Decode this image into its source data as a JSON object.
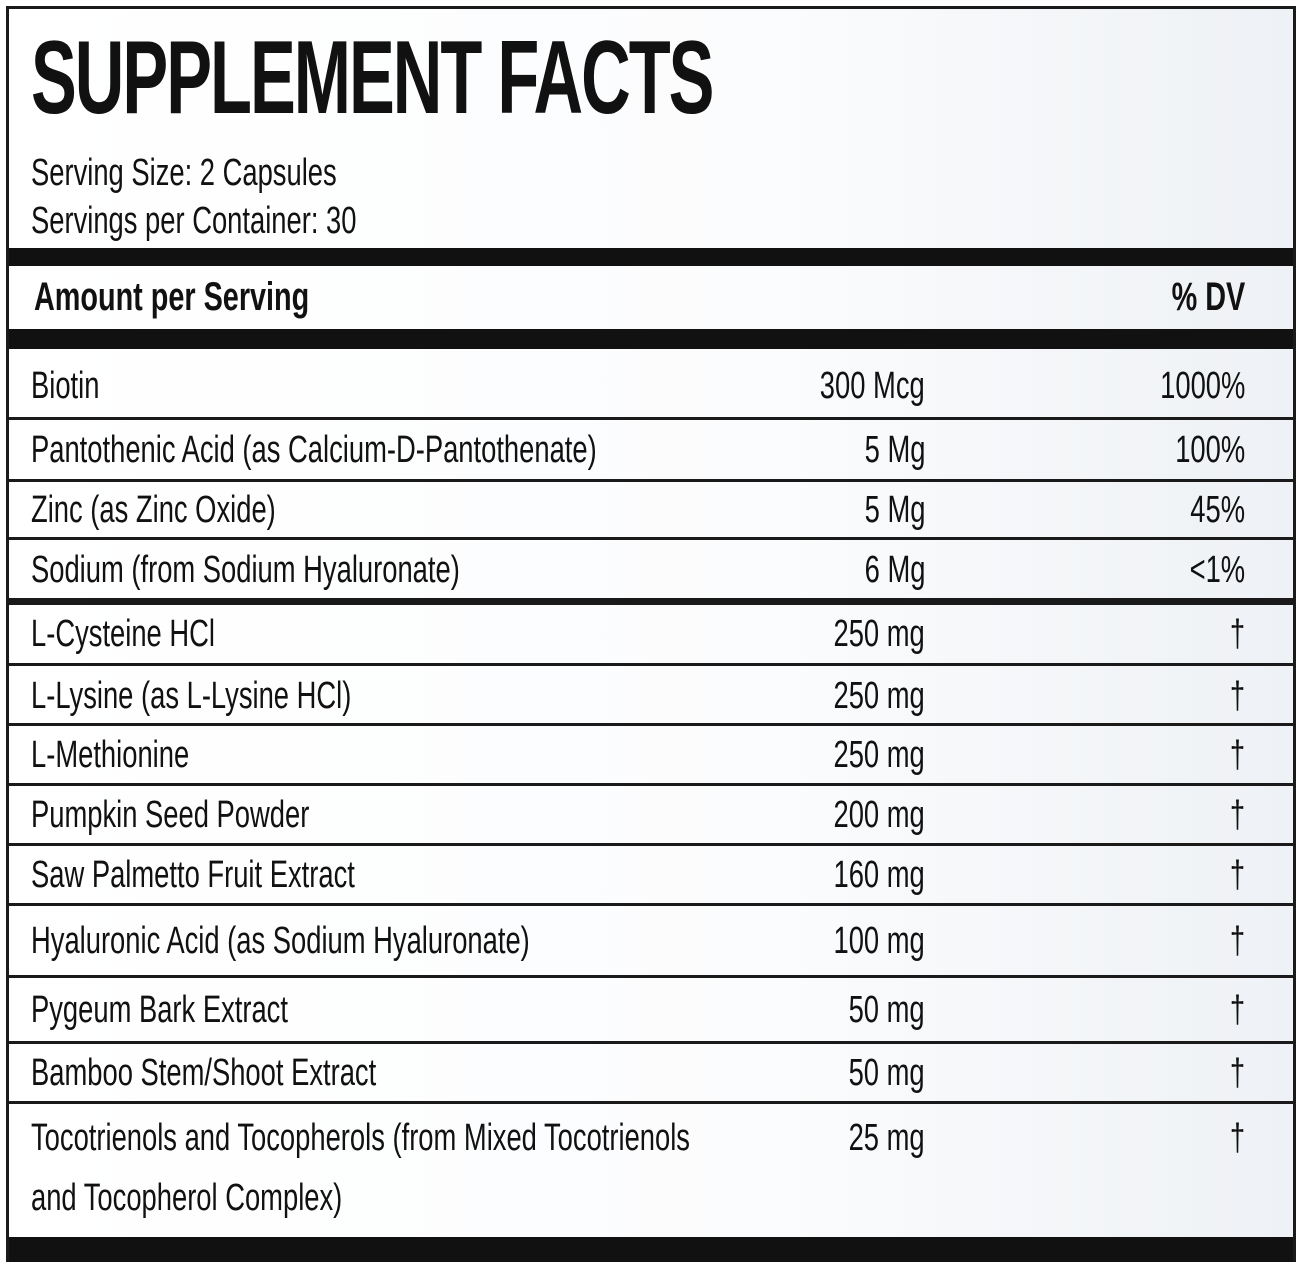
{
  "title": "SUPPLEMENT FACTS",
  "serving_size": "Serving Size: 2 Capsules",
  "servings_per_container": "Servings per Container: 30",
  "header": {
    "amount_label": "Amount per Serving",
    "dv_label": "% DV"
  },
  "vitamins": [
    {
      "name": "Biotin",
      "amount": "300 Mcg",
      "dv": "1000%"
    },
    {
      "name": "Pantothenic Acid (as Calcium-D-Pantothenate)",
      "amount": "5 Mg",
      "dv": "100%"
    },
    {
      "name": "Zinc (as Zinc Oxide)",
      "amount": "5 Mg",
      "dv": "45%"
    },
    {
      "name": "Sodium (from Sodium Hyaluronate)",
      "amount": "6 Mg",
      "dv": "<1%"
    }
  ],
  "ingredients": [
    {
      "name": "L-Cysteine HCl",
      "amount": "250 mg",
      "dv": "†"
    },
    {
      "name": "L-Lysine (as L-Lysine HCl)",
      "amount": "250 mg",
      "dv": "†"
    },
    {
      "name": "L-Methionine",
      "amount": "250 mg",
      "dv": "†"
    },
    {
      "name": "Pumpkin Seed Powder",
      "amount": "200 mg",
      "dv": "†"
    },
    {
      "name": "Saw Palmetto Fruit Extract",
      "amount": "160 mg",
      "dv": "†"
    },
    {
      "name": "Hyaluronic Acid (as Sodium Hyaluronate)",
      "amount": "100 mg",
      "dv": "†"
    },
    {
      "name": "Pygeum Bark Extract",
      "amount": "50 mg",
      "dv": "†"
    },
    {
      "name": "Bamboo Stem/Shoot Extract",
      "amount": "50 mg",
      "dv": "†"
    },
    {
      "name_line1": "Tocotrienols and Tocopherols (from Mixed Tocotrienols",
      "name_line2": "and Tocopherol Complex)",
      "amount": "25 mg",
      "dv": "†"
    }
  ]
}
